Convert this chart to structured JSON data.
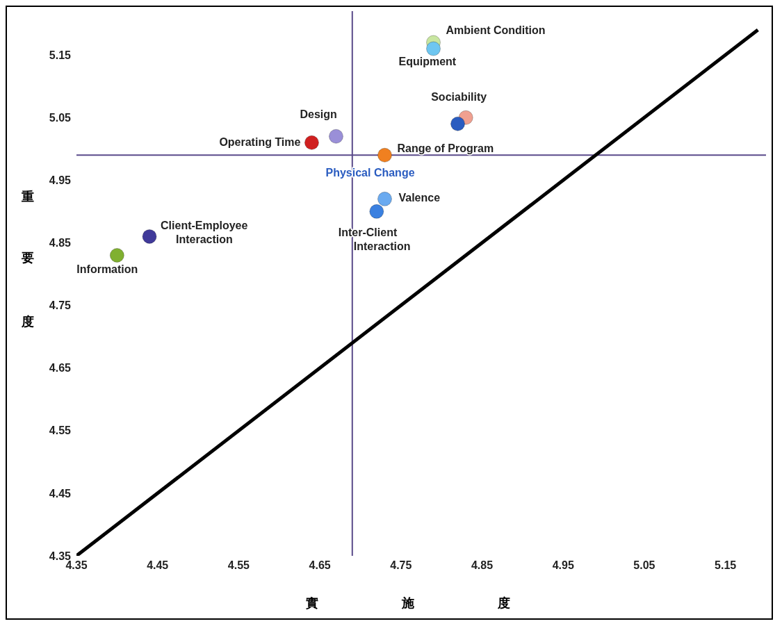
{
  "chart_data": {
    "type": "scatter",
    "xlabel": "實施度",
    "ylabel": "重要度",
    "xlim": [
      4.35,
      5.2
    ],
    "ylim": [
      4.35,
      5.22
    ],
    "xticks": [
      4.35,
      4.45,
      4.55,
      4.65,
      4.75,
      4.85,
      4.95,
      5.05,
      5.15
    ],
    "yticks": [
      4.35,
      4.45,
      4.55,
      4.65,
      4.75,
      4.85,
      4.95,
      5.05,
      5.15
    ],
    "grid": false,
    "legend": false,
    "marker": "circle",
    "ref_lines": [
      {
        "axis": "x",
        "value": 4.69,
        "color": "#5a4a8a"
      },
      {
        "axis": "y",
        "value": 4.99,
        "color": "#5a4a8a"
      }
    ],
    "series": [
      {
        "name": "Ambient Condition",
        "color": "#c8e6a0",
        "x": [
          4.79
        ],
        "values": [
          5.17
        ]
      },
      {
        "name": "Equipment",
        "color": "#6ec6f0",
        "x": [
          4.79
        ],
        "values": [
          5.16
        ]
      },
      {
        "name": "Sociability",
        "color": "#f0a090",
        "x": [
          4.83
        ],
        "values": [
          5.05
        ]
      },
      {
        "name": "Physical Change",
        "color": "#2a5cc0",
        "x": [
          4.82
        ],
        "values": [
          5.04
        ]
      },
      {
        "name": "Design",
        "color": "#9a8fd8",
        "x": [
          4.67
        ],
        "values": [
          5.02
        ]
      },
      {
        "name": "Operating Time",
        "color": "#d02020",
        "x": [
          4.64
        ],
        "values": [
          5.01
        ]
      },
      {
        "name": "Range of Program",
        "color": "#f08020",
        "x": [
          4.73
        ],
        "values": [
          4.99
        ]
      },
      {
        "name": "Valence",
        "color": "#6aaaf0",
        "x": [
          4.73
        ],
        "values": [
          4.92
        ]
      },
      {
        "name": "Inter-Client Interaction",
        "color": "#3a80e0",
        "x": [
          4.72
        ],
        "values": [
          4.9
        ]
      },
      {
        "name": "Client-Employee Interaction",
        "color": "#403a9a",
        "x": [
          4.44
        ],
        "values": [
          4.86
        ]
      },
      {
        "name": "Information",
        "color": "#80b030",
        "x": [
          4.4
        ],
        "values": [
          4.83
        ]
      },
      {
        "type": "line",
        "marker": "none",
        "color": "#000000",
        "x": [
          4.35,
          5.19
        ],
        "values": [
          4.35,
          5.19
        ]
      }
    ]
  }
}
